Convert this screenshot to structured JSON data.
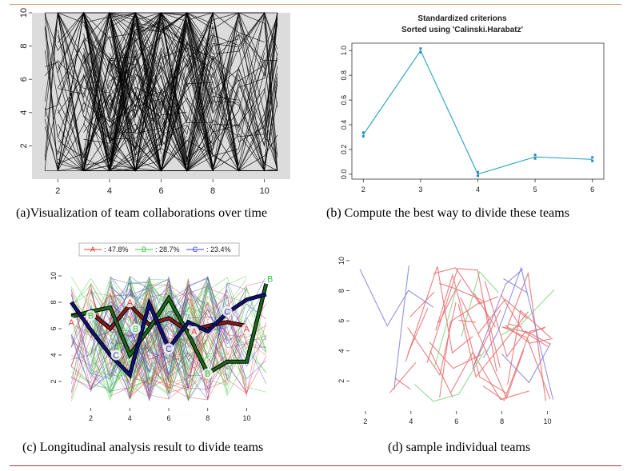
{
  "figure": {
    "rule_top_color": "#c9a27a",
    "rule_bottom_color": "#a83a3a"
  },
  "captions": {
    "a": "(a)Visualization of team collaborations over time",
    "b": "(b) Compute the best way to divide these teams",
    "c": "(c) Longitudinal analysis result to divide teams",
    "d": "(d) sample individual teams"
  },
  "chart_data": [
    {
      "id": "a",
      "type": "line",
      "title": "",
      "xlabel": "",
      "ylabel": "",
      "xlim": [
        1,
        11
      ],
      "ylim": [
        0,
        10
      ],
      "x_ticks": [
        "2",
        "4",
        "6",
        "8",
        "10"
      ],
      "y_ticks": [
        "2",
        "4",
        "6",
        "8",
        "10"
      ],
      "background": "#dcdcdc",
      "line_color": "#000000",
      "series_count": 120,
      "x_range": [
        1.5,
        10.5
      ],
      "y_range": [
        0.5,
        10
      ]
    },
    {
      "id": "b",
      "type": "line",
      "title": "Standardized criterions",
      "subtitle": "Sorted using 'Calinski.Harabatz'",
      "xlabel": "",
      "ylabel": "",
      "xlim": [
        1.8,
        6.2
      ],
      "ylim": [
        -0.04,
        1.06
      ],
      "x_ticks": [
        "2",
        "3",
        "4",
        "5",
        "6"
      ],
      "y_ticks": [
        "0.0",
        "0.2",
        "0.4",
        "0.6",
        "0.8",
        "1.0"
      ],
      "line_color": "#33a8c8",
      "x": [
        2,
        3,
        4,
        5,
        6
      ],
      "values": [
        0.32,
        1.0,
        0.0,
        0.14,
        0.12
      ]
    },
    {
      "id": "c",
      "type": "line",
      "title": "",
      "xlabel": "",
      "ylabel": "",
      "xlim": [
        0.5,
        11.5
      ],
      "ylim": [
        0,
        10
      ],
      "x_ticks": [
        "2",
        "4",
        "6",
        "8",
        "10"
      ],
      "y_ticks": [
        "2",
        "4",
        "6",
        "8",
        "10"
      ],
      "legend": [
        {
          "marker": "A",
          "label": ": 47.8%",
          "color": "#e0403a"
        },
        {
          "marker": "B",
          "label": ": 28.7%",
          "color": "#3ec83e"
        },
        {
          "marker": "C",
          "label": ": 23.4%",
          "color": "#4040c8"
        }
      ],
      "series": [
        {
          "name": "A",
          "color": "#8b1a1a",
          "x": [
            1,
            2,
            3,
            4,
            5,
            6,
            7,
            8,
            9,
            10
          ],
          "values": [
            7.0,
            7.2,
            6.0,
            7.8,
            6.3,
            6.8,
            5.8,
            6.2,
            6.5,
            6.2
          ]
        },
        {
          "name": "B",
          "color": "#1a6b1a",
          "x": [
            1,
            2,
            3,
            4,
            5,
            6,
            7,
            8,
            9,
            10,
            11
          ],
          "values": [
            6.9,
            7.3,
            7.6,
            4.0,
            6.0,
            8.3,
            5.6,
            2.6,
            3.5,
            3.5,
            9.4
          ]
        },
        {
          "name": "C",
          "color": "#10107a",
          "x": [
            1,
            2,
            3,
            4,
            5,
            6,
            7,
            8,
            9,
            10,
            11
          ],
          "values": [
            8.0,
            5.9,
            4.0,
            2.5,
            7.9,
            4.5,
            6.5,
            5.8,
            7.2,
            8.2,
            8.6
          ]
        }
      ],
      "marker_labels": [
        {
          "text": "A",
          "x": 1.0,
          "y": 6.5,
          "color": "#e0403a"
        },
        {
          "text": "B",
          "x": 2.0,
          "y": 7.0,
          "color": "#3ec83e"
        },
        {
          "text": "A",
          "x": 4.0,
          "y": 8.0,
          "color": "#e0403a"
        },
        {
          "text": "C",
          "x": 3.3,
          "y": 4.0,
          "color": "#4040c8"
        },
        {
          "text": "B",
          "x": 4.3,
          "y": 6.0,
          "color": "#3ec83e"
        },
        {
          "text": "C",
          "x": 6.0,
          "y": 4.5,
          "color": "#4040c8"
        },
        {
          "text": "A",
          "x": 7.3,
          "y": 5.8,
          "color": "#e0403a"
        },
        {
          "text": "B",
          "x": 8.0,
          "y": 2.6,
          "color": "#3ec83e"
        },
        {
          "text": "C",
          "x": 9.0,
          "y": 7.3,
          "color": "#4040c8"
        },
        {
          "text": "A",
          "x": 10.0,
          "y": 6.0,
          "color": "#e0403a"
        },
        {
          "text": "B",
          "x": 11.2,
          "y": 9.8,
          "color": "#3ec83e"
        }
      ],
      "background_series_count": 140
    },
    {
      "id": "d",
      "type": "line",
      "title": "",
      "xlabel": "",
      "ylabel": "",
      "xlim": [
        1.3,
        11.0
      ],
      "ylim": [
        0,
        10
      ],
      "x_ticks": [
        "2",
        "4",
        "6",
        "8",
        "10"
      ],
      "y_ticks": [
        "2",
        "4",
        "6",
        "8",
        "10"
      ],
      "colors": [
        "#e86a6a",
        "#8080e0",
        "#e86a6a",
        "#e86a6a",
        "#7fd67f"
      ],
      "series_count": 40
    }
  ]
}
